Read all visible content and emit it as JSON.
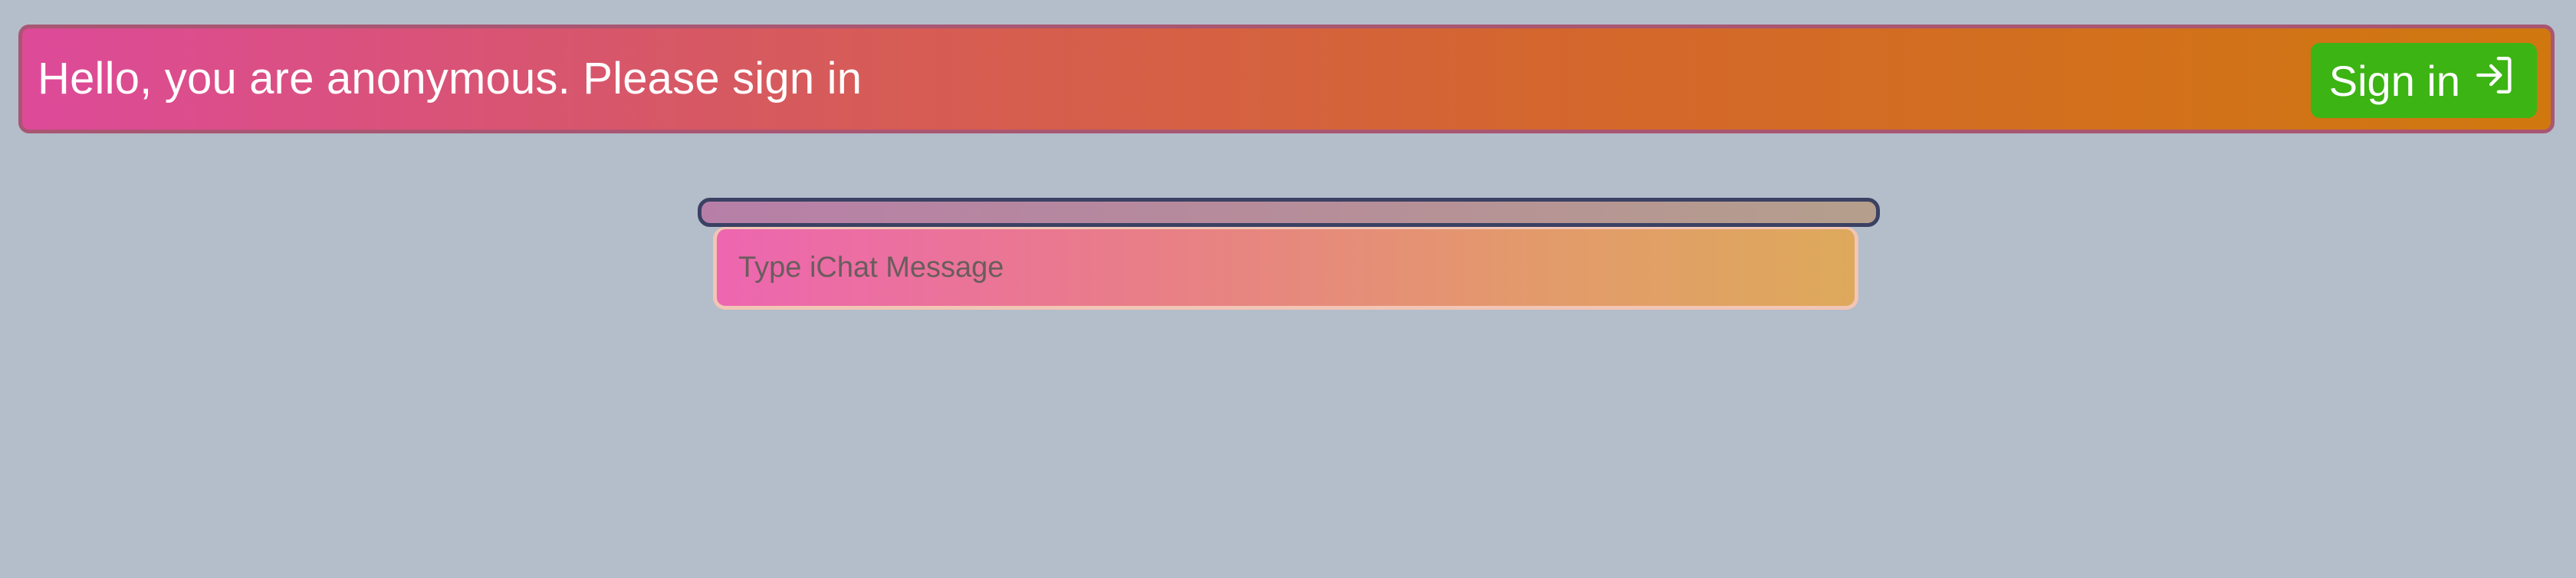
{
  "header": {
    "greeting": "Hello, you are anonymous. Please sign in",
    "signin_label": "Sign in",
    "signin_icon": "sign-in-arrow-icon"
  },
  "chat": {
    "input_placeholder": "Type iChat Message",
    "input_value": ""
  },
  "colors": {
    "background": "#b4bdca",
    "header_gradient_start": "#dd4a99",
    "header_gradient_end": "#d0780f",
    "signin_button": "#3cb414",
    "input_gradient_start": "#ed66b0",
    "input_gradient_end": "#dea95c"
  }
}
